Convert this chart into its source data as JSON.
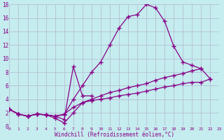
{
  "xlabel": "Windchill (Refroidissement éolien,°C)",
  "xlim": [
    0,
    23
  ],
  "ylim": [
    0,
    18
  ],
  "xticks": [
    0,
    1,
    2,
    3,
    4,
    5,
    6,
    7,
    8,
    9,
    10,
    11,
    12,
    13,
    14,
    15,
    16,
    17,
    18,
    19,
    20,
    21,
    22,
    23
  ],
  "yticks": [
    0,
    2,
    4,
    6,
    8,
    10,
    12,
    14,
    16,
    18
  ],
  "bg_color": "#c5ecee",
  "line_color": "#880088",
  "grid_color": "#b0b8d0",
  "series": [
    {
      "x": [
        0,
        1,
        2,
        3,
        4,
        5,
        6,
        7,
        8,
        9,
        10,
        11,
        12,
        13,
        14,
        15,
        16,
        17,
        18,
        19,
        20,
        21,
        22
      ],
      "y": [
        2.5,
        1.8,
        1.5,
        1.8,
        1.7,
        1.5,
        1.7,
        4.0,
        6.0,
        8.0,
        9.5,
        12.0,
        14.5,
        16.2,
        16.5,
        18.0,
        17.5,
        15.5,
        11.8,
        9.5,
        9.0,
        8.5,
        null
      ]
    },
    {
      "x": [
        0,
        1,
        2,
        3,
        4,
        5,
        6,
        7,
        8,
        9
      ],
      "y": [
        2.5,
        1.8,
        1.5,
        1.8,
        1.7,
        1.5,
        1.0,
        8.8,
        4.5,
        4.5
      ]
    },
    {
      "x": [
        0,
        1,
        2,
        3,
        4,
        5,
        6,
        7,
        8,
        9,
        10,
        11,
        12,
        13,
        14,
        15,
        16,
        17,
        18,
        19,
        20,
        21,
        22
      ],
      "y": [
        2.5,
        1.8,
        1.5,
        1.8,
        1.7,
        1.5,
        1.8,
        2.8,
        3.5,
        4.0,
        4.5,
        5.0,
        5.3,
        5.7,
        6.0,
        6.3,
        6.8,
        7.2,
        7.5,
        7.8,
        8.2,
        8.5,
        7.0
      ]
    },
    {
      "x": [
        0,
        1,
        2,
        3,
        4,
        5,
        6,
        7,
        8,
        9,
        10,
        11,
        12,
        13,
        14,
        15,
        16,
        17,
        18,
        19,
        20,
        21,
        22
      ],
      "y": [
        2.5,
        1.8,
        1.5,
        1.8,
        1.7,
        1.2,
        0.5,
        2.0,
        3.5,
        3.8,
        4.0,
        4.2,
        4.5,
        4.7,
        4.9,
        5.2,
        5.5,
        5.8,
        6.0,
        6.3,
        6.5,
        6.5,
        7.0
      ]
    }
  ]
}
